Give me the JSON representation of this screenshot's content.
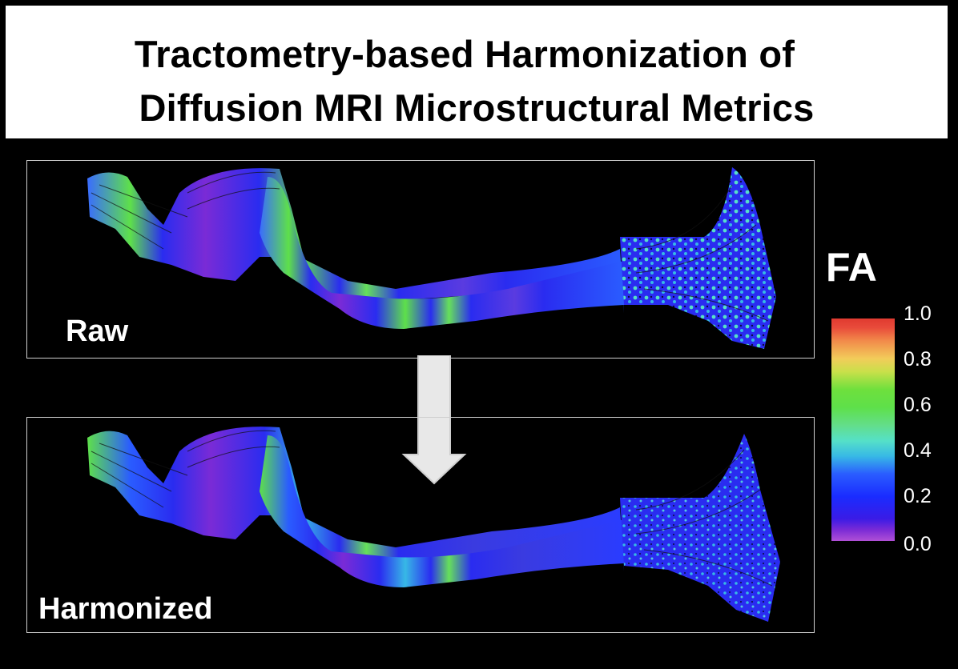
{
  "title": {
    "line1": "Tractometry-based Harmonization of",
    "line2": "Diffusion MRI Microstructural Metrics"
  },
  "panels": {
    "raw_label": "Raw",
    "harmonized_label": "Harmonized"
  },
  "colorbar": {
    "title": "FA",
    "ticks": [
      "1.0",
      "0.8",
      "0.6",
      "0.4",
      "0.2",
      "0.0"
    ],
    "range": [
      0.0,
      1.0
    ]
  },
  "colors": {
    "background": "#000000",
    "tract_blue": "#2a2cf0",
    "tract_green": "#5ee04a",
    "tract_purple": "#7a2bd6"
  }
}
